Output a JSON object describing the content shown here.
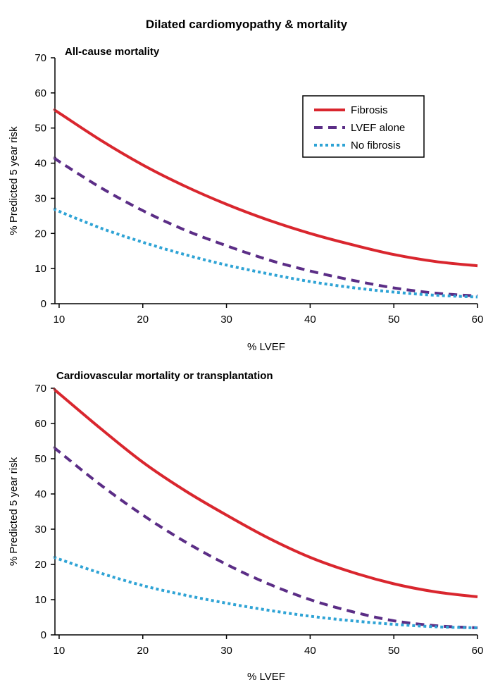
{
  "figure_title": "Dilated cardiomyopathy & mortality",
  "legend": [
    {
      "label": "Fibrosis",
      "color": "#d9262e",
      "style": "solid"
    },
    {
      "label": "LVEF alone",
      "color": "#5b2d86",
      "style": "dashed"
    },
    {
      "label": "No fibrosis",
      "color": "#2ea3d5",
      "style": "dotted"
    }
  ],
  "chart_data": [
    {
      "type": "line",
      "title": "All-cause mortality",
      "xlabel": "% LVEF",
      "ylabel": "% Predicted 5 year risk",
      "xlim": [
        9.5,
        60
      ],
      "ylim": [
        0,
        70
      ],
      "xticks": [
        10,
        20,
        30,
        40,
        50,
        60
      ],
      "yticks": [
        0,
        10,
        20,
        30,
        40,
        50,
        60,
        70
      ],
      "x": [
        9.5,
        10,
        15,
        20,
        25,
        30,
        35,
        40,
        45,
        50,
        55,
        60
      ],
      "series": [
        {
          "name": "Fibrosis",
          "values": [
            55,
            54.3,
            46.5,
            39.5,
            33.5,
            28.3,
            23.8,
            20,
            16.8,
            14,
            12,
            10.8
          ]
        },
        {
          "name": "LVEF alone",
          "values": [
            41.5,
            40.5,
            33,
            26.5,
            21,
            16.5,
            12.5,
            9.3,
            6.7,
            4.5,
            3,
            2.2
          ]
        },
        {
          "name": "No fibrosis",
          "values": [
            27,
            26.3,
            21.5,
            17.5,
            14,
            11,
            8.5,
            6.3,
            4.6,
            3.3,
            2.4,
            1.9
          ]
        }
      ]
    },
    {
      "type": "line",
      "title": "Cardiovascular mortality or transplantation",
      "xlabel": "% LVEF",
      "ylabel": "% Predicted 5 year risk",
      "xlim": [
        9.5,
        60
      ],
      "ylim": [
        0,
        70
      ],
      "xticks": [
        10,
        20,
        30,
        40,
        50,
        60
      ],
      "yticks": [
        0,
        10,
        20,
        30,
        40,
        50,
        60,
        70
      ],
      "x": [
        9.5,
        10,
        15,
        20,
        25,
        30,
        35,
        40,
        45,
        50,
        55,
        60
      ],
      "series": [
        {
          "name": "Fibrosis",
          "values": [
            69.5,
            68.5,
            58.5,
            49,
            41,
            34,
            27.5,
            22,
            17.8,
            14.5,
            12.2,
            10.8
          ]
        },
        {
          "name": "LVEF alone",
          "values": [
            53,
            52,
            42.5,
            34,
            26.5,
            20,
            14.5,
            10,
            6.6,
            4,
            2.6,
            2
          ]
        },
        {
          "name": "No fibrosis",
          "values": [
            22,
            21.5,
            17.5,
            14,
            11.3,
            9,
            7,
            5.3,
            4,
            3,
            2.3,
            2
          ]
        }
      ]
    }
  ]
}
